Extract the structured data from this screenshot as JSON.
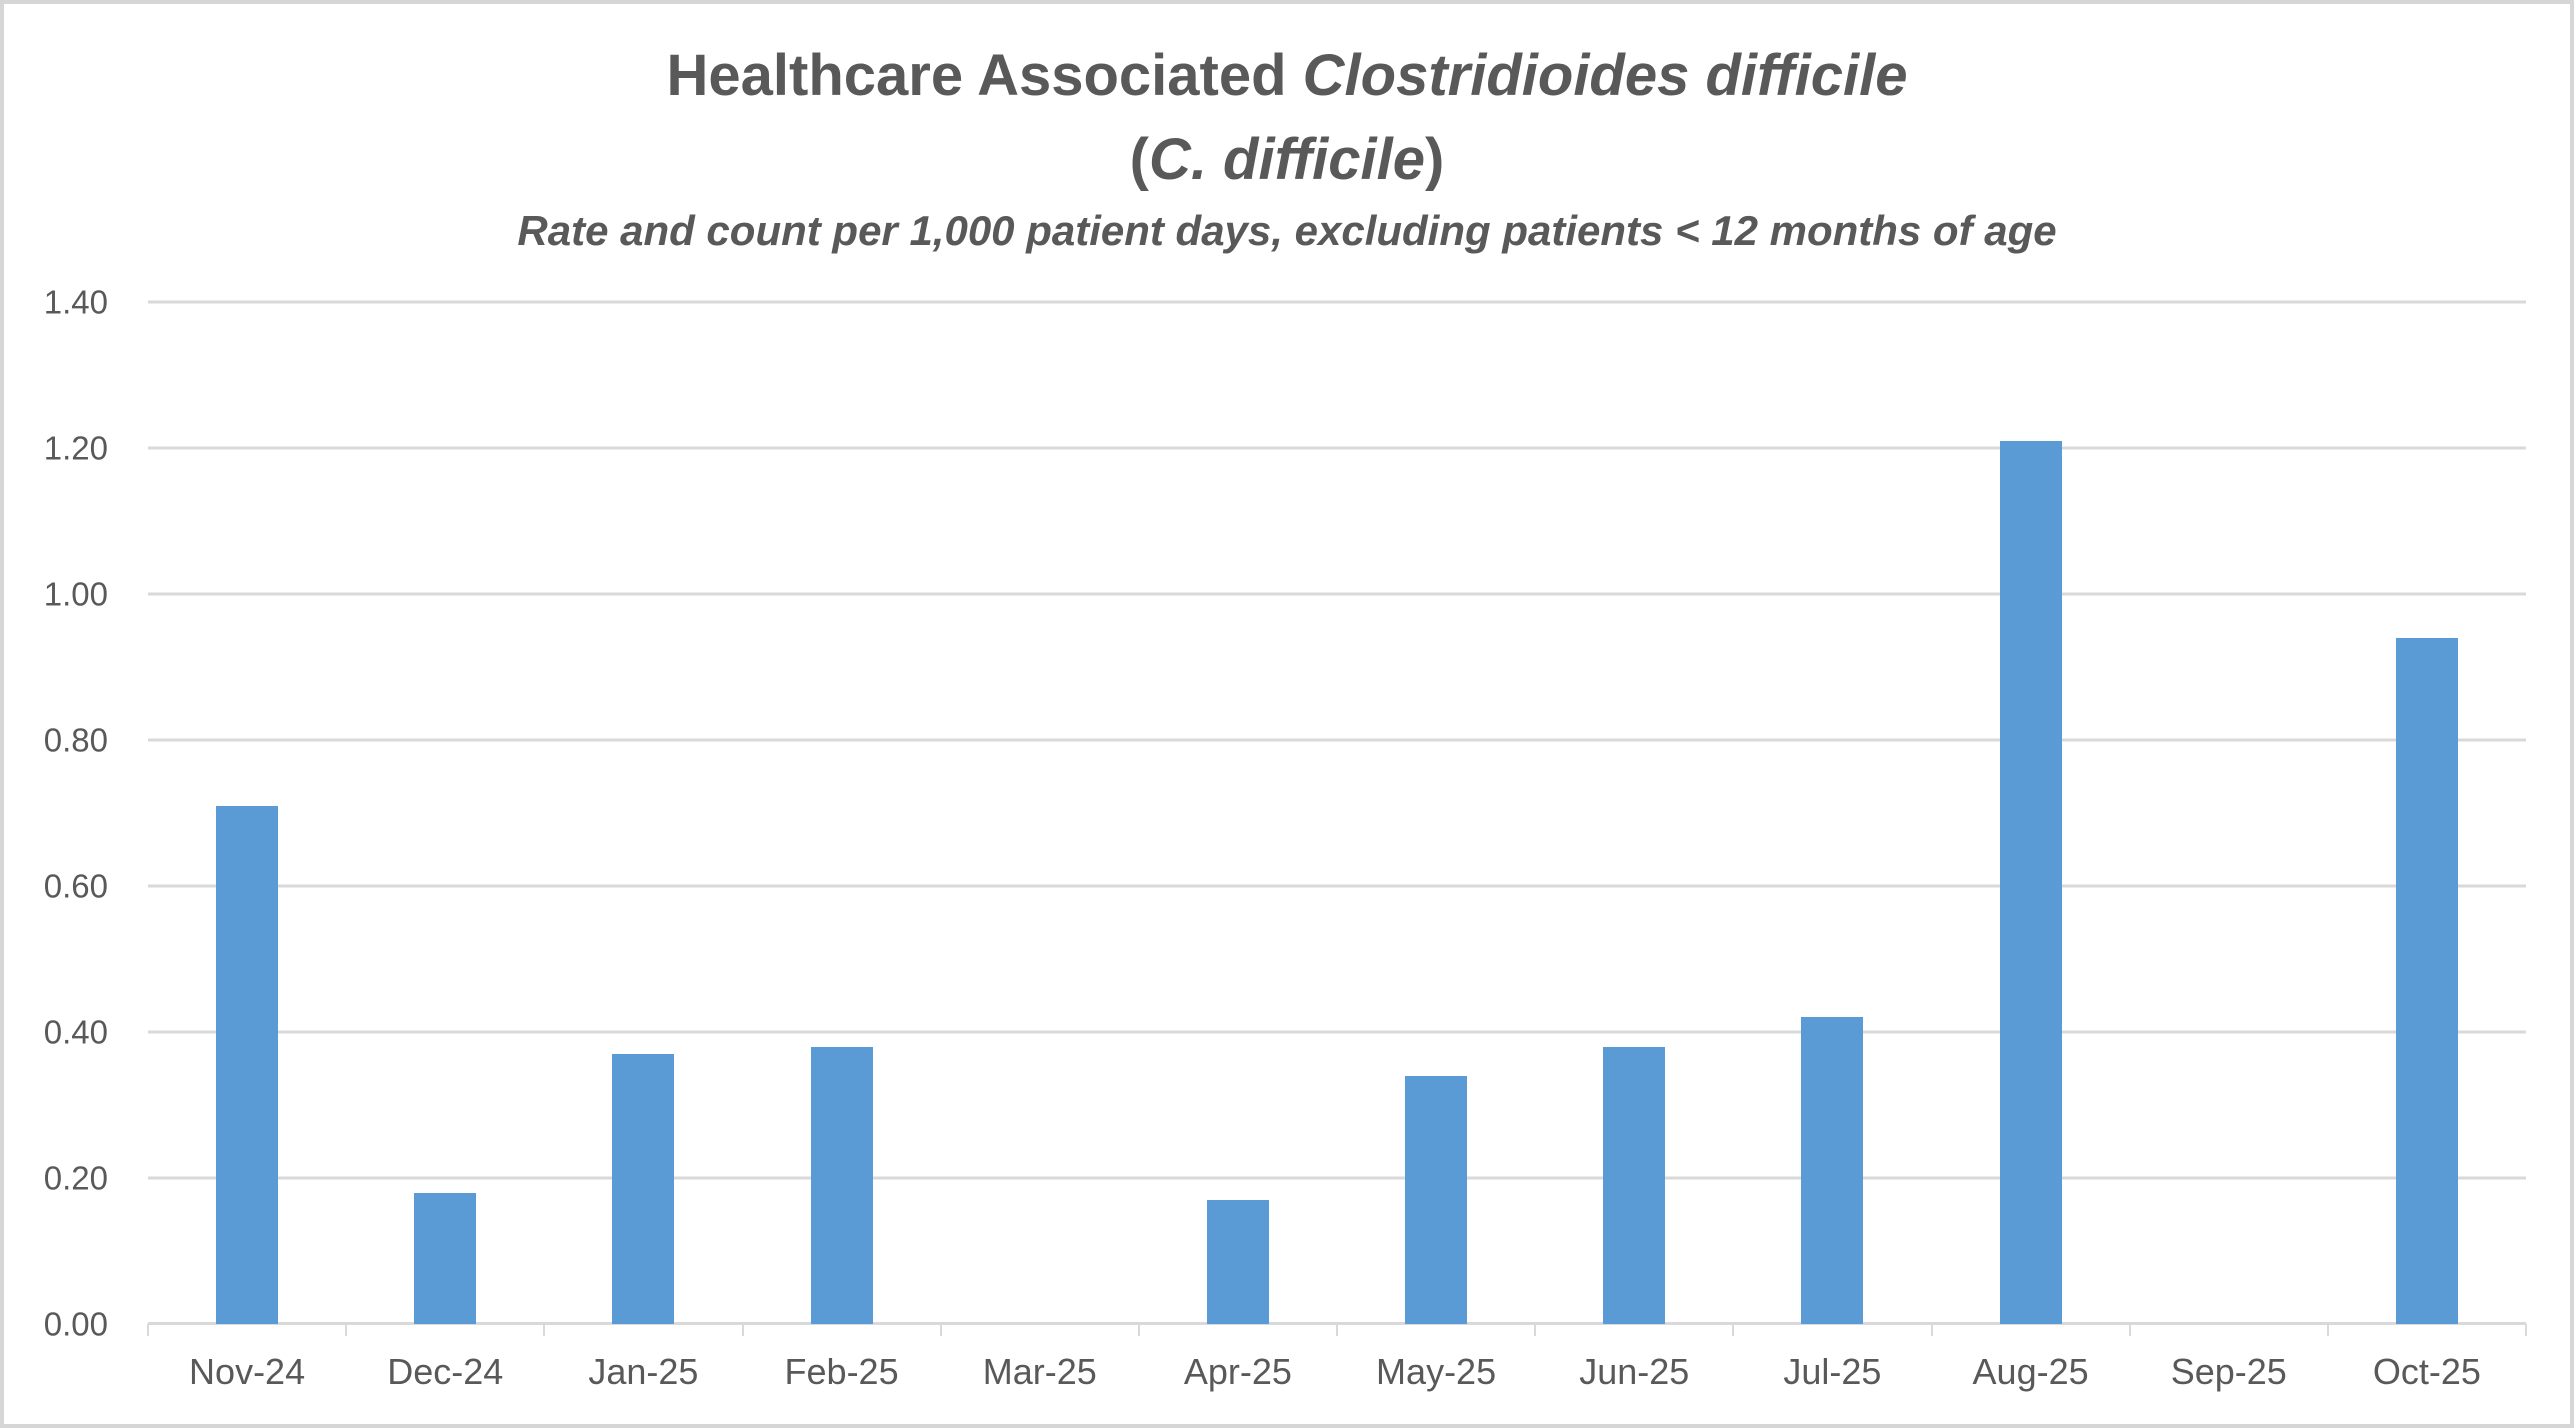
{
  "chart_data": {
    "type": "bar",
    "title": {
      "line1_regular": "Healthcare Associated ",
      "line1_italic": "Clostridioides difficile",
      "line2_prefix": "(",
      "line2_italic": "C. difficile",
      "line2_suffix": ")"
    },
    "subtitle": "Rate and count per 1,000 patient days, excluding patients < 12 months of age",
    "categories": [
      "Nov-24",
      "Dec-24",
      "Jan-25",
      "Feb-25",
      "Mar-25",
      "Apr-25",
      "May-25",
      "Jun-25",
      "Jul-25",
      "Aug-25",
      "Sep-25",
      "Oct-25"
    ],
    "values": [
      0.71,
      0.18,
      0.37,
      0.38,
      0.0,
      0.17,
      0.34,
      0.38,
      0.42,
      1.21,
      0.0,
      0.94
    ],
    "ylim": [
      0,
      1.4
    ],
    "ytick_interval": 0.2,
    "yticks": [
      {
        "label": "0.00",
        "value": 0.0
      },
      {
        "label": "0.20",
        "value": 0.2
      },
      {
        "label": "0.40",
        "value": 0.4
      },
      {
        "label": "0.60",
        "value": 0.6
      },
      {
        "label": "0.80",
        "value": 0.8
      },
      {
        "label": "1.00",
        "value": 1.0
      },
      {
        "label": "1.20",
        "value": 1.2
      },
      {
        "label": "1.40",
        "value": 1.4
      }
    ],
    "grid": true,
    "legend": "none",
    "colors": {
      "bar": "#5B9BD5",
      "gridline": "#D9D9D9",
      "axis": "#D9D9D9",
      "text": "#595959",
      "frame_border": "#D6D6D6",
      "background": "#FFFFFF"
    }
  }
}
